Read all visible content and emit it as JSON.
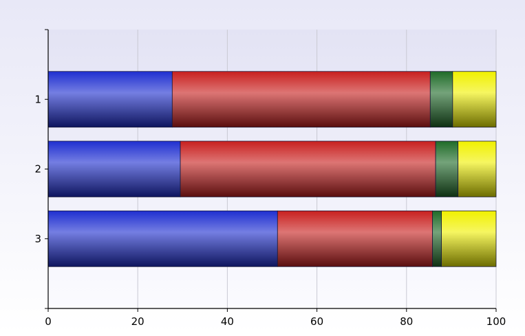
{
  "chart_data": {
    "type": "bar",
    "orientation": "horizontal",
    "stacked": true,
    "percent_stacked": true,
    "categories": [
      "1",
      "2",
      "3"
    ],
    "series": [
      {
        "values": [
          27.7,
          29.5,
          51.2
        ],
        "color": "#1f2fd0"
      },
      {
        "values": [
          57.6,
          57.0,
          34.6
        ],
        "color": "#c8201f"
      },
      {
        "values": [
          5.0,
          5.0,
          2.0
        ],
        "color": "#1f6b28"
      },
      {
        "values": [
          9.7,
          8.5,
          12.2
        ],
        "color": "#f0f000"
      }
    ],
    "xlim": [
      0,
      100
    ],
    "x_ticks": [
      "0",
      "20",
      "40",
      "60",
      "80",
      "100"
    ],
    "grid": true,
    "legend": "none",
    "title": "",
    "xlabel": "",
    "ylabel": ""
  }
}
